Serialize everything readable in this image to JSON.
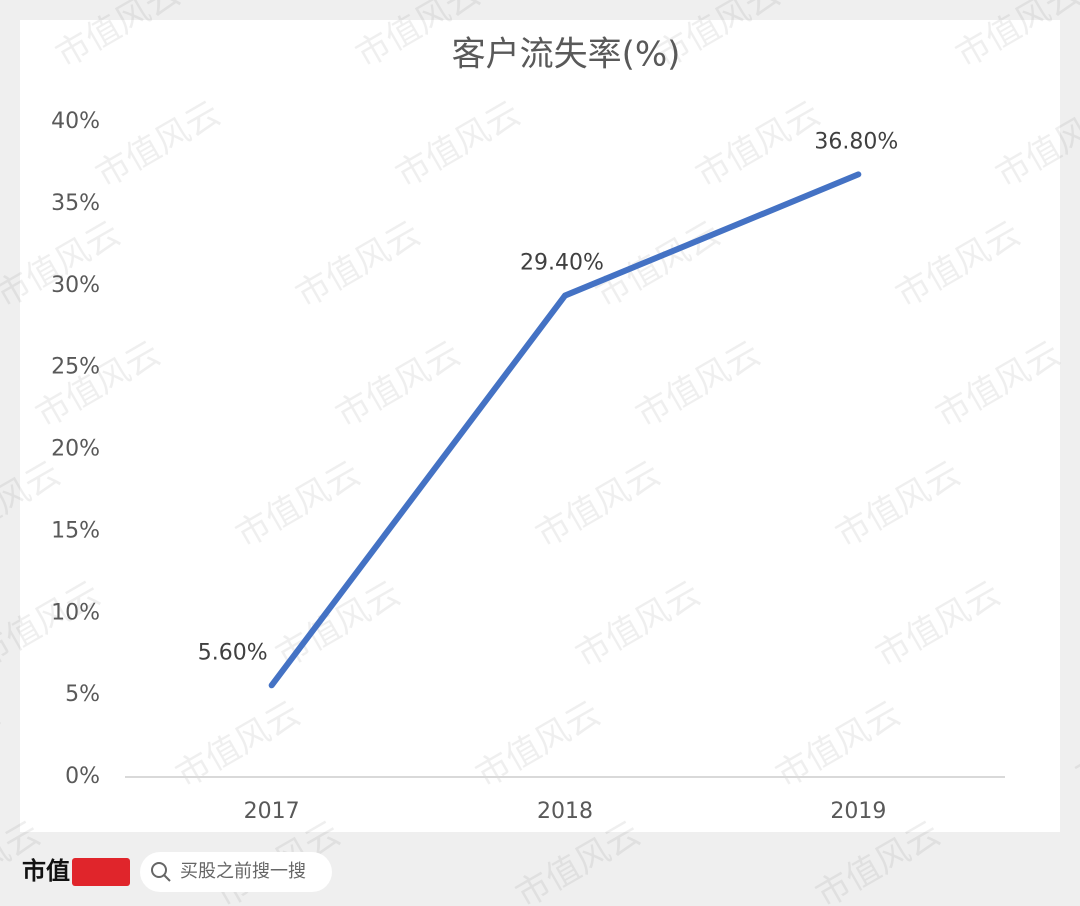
{
  "chart_data": {
    "type": "line",
    "title": "客户流失率(%)",
    "categories": [
      "2017",
      "2018",
      "2019"
    ],
    "values": [
      5.6,
      29.4,
      36.8
    ],
    "value_labels": [
      "5.60%",
      "29.40%",
      "36.80%"
    ],
    "color": "#4472c4",
    "ylim": [
      0,
      40
    ],
    "yticks": [
      {
        "value": 0,
        "label": "0%"
      },
      {
        "value": 5,
        "label": "5%"
      },
      {
        "value": 10,
        "label": "10%"
      },
      {
        "value": 15,
        "label": "15%"
      },
      {
        "value": 20,
        "label": "20%"
      },
      {
        "value": 25,
        "label": "25%"
      },
      {
        "value": 30,
        "label": "30%"
      },
      {
        "value": 35,
        "label": "35%"
      },
      {
        "value": 40,
        "label": "40%"
      }
    ],
    "grid": false
  },
  "watermark": "市值风云",
  "footer": {
    "brand": "市值",
    "search_placeholder": "买股之前搜一搜"
  }
}
